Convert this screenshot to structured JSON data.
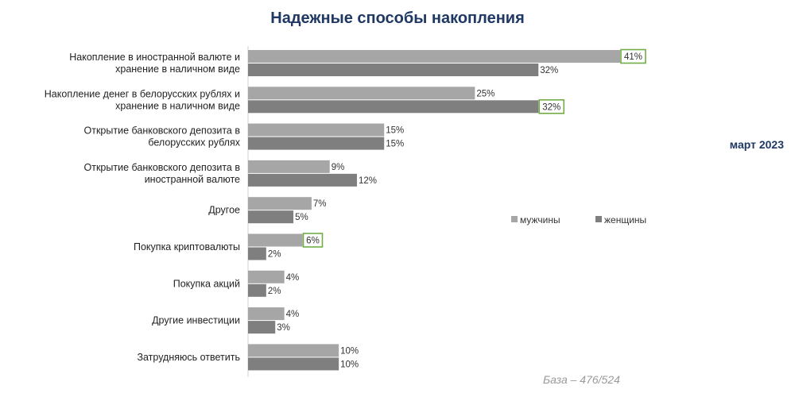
{
  "chart_data": {
    "type": "bar",
    "orientation": "horizontal",
    "title": "Надежные способы накопления",
    "subtitle": "март 2023",
    "categories": [
      [
        "Накопление в иностранной валюте и",
        "хранение в наличном виде"
      ],
      [
        "Накопление денег в белорусских рублях и",
        "хранение в наличном виде"
      ],
      [
        "Открытие банковского депозита в",
        "белорусских рублях"
      ],
      [
        "Открытие банковского депозита в",
        "иностранной валюте"
      ],
      [
        "Другое"
      ],
      [
        "Покупка криптовалюты"
      ],
      [
        "Покупка акций"
      ],
      [
        "Другие инвестиции"
      ],
      [
        "Затрудняюсь ответить"
      ]
    ],
    "series": [
      {
        "name": "мужчины",
        "color": "#a6a6a6",
        "values": [
          41,
          25,
          15,
          9,
          7,
          6,
          4,
          4,
          10
        ]
      },
      {
        "name": "женщины",
        "color": "#7f7f7f",
        "values": [
          32,
          32,
          15,
          12,
          5,
          2,
          2,
          3,
          10
        ]
      }
    ],
    "value_suffix": "%",
    "highlights": [
      {
        "series": 0,
        "index": 0
      },
      {
        "series": 1,
        "index": 1
      },
      {
        "series": 0,
        "index": 5
      }
    ],
    "highlight_color": "#70ad47",
    "xlim": [
      0,
      45
    ],
    "grid": false,
    "legend_position": "right",
    "note": "База – 476/524"
  }
}
